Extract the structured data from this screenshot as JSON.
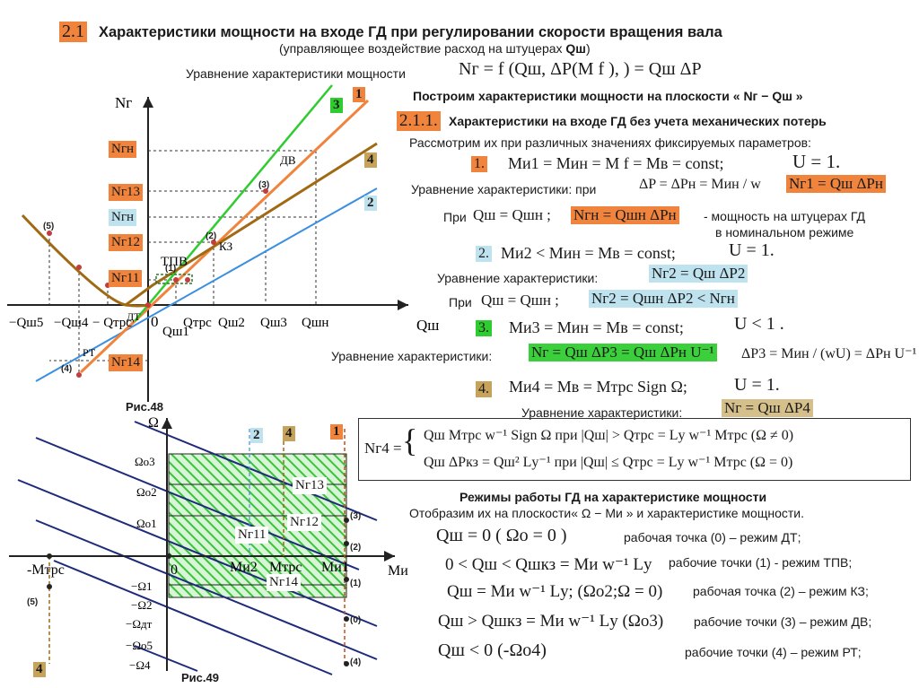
{
  "header": {
    "section_num": "2.1",
    "title": "Характеристики мощности на входе ГД при регулировании скорости вращения вала",
    "subtitle_pre": "(управляющее воздействие расход на штуцерах ",
    "subtitle_q": "Qш",
    "subtitle_post": ")",
    "power_eq_label": "Уравнение характеристики мощности",
    "power_eq": "Nг = f (Qш, ΔP(M f ), ) = Qш ΔP"
  },
  "right": {
    "build_line": "Построим характеристики мощности на плоскости « Nг − Qш »",
    "sub_num": "2.1.1.",
    "sub_title": "Характеристики на входе ГД без учета механических потерь",
    "consider": "Рассмотрим их при различных значениях фиксируемых параметров:",
    "case1_num": "1.",
    "case1_eq": "Mи1 = Mин = M f = Mв = const;",
    "case1_u": "U = 1.",
    "eq1_label": "Уравнение характеристики: при",
    "eq1_cond": "ΔP = ΔPн = Mин / w",
    "eq1_box": "Nг1 = Qш ΔPн",
    "nom_pre": "При",
    "nom_cond": "Qш = Qшн ;",
    "nom_box": "Nгн = Qшн ΔPн",
    "nom_note1": "- мощность на штуцерах ГД",
    "nom_note2": "в  номинальном режиме",
    "case2_num": "2.",
    "case2_eq": "Mи2 < Mин = Mв = const;",
    "case2_u": "U = 1.",
    "eq2_label": "Уравнение характеристики:",
    "eq2_box": "Nг2 = Qш ΔP2",
    "eq2b_pre": "При",
    "eq2b_cond": "Qш = Qшн ;",
    "eq2b_box": "Nг2 = Qшн ΔP2 < Nгн",
    "case3_num": "3.",
    "case3_eq": "Mи3 = Mин = Mв = const;",
    "case3_u": "U < 1 .",
    "eq3_label": "Уравнение характеристики:",
    "eq3_box": "Nг = Qш ΔP3 = Qш ΔPн U⁻¹",
    "eq3_extra": "ΔP3 = Mин / (wU) = ΔPн U⁻¹",
    "case4_num": "4.",
    "case4_eq": "Mи4 = Mв = Mтрс Sign Ω;",
    "case4_u": "U = 1.",
    "eq4_label": "Уравнение характеристики:",
    "eq4_box": "Nг = Qш ΔP4",
    "sys_left": "Nг4 =",
    "sys_r1": "Qш Mтрс w⁻¹ Sign Ω  при |Qш| > Qтрс = Lу w⁻¹ Mтрс  (Ω ≠ 0)",
    "sys_r2": "Qш ΔPкз = Qш² Lу⁻¹   при |Qш| ≤ Qтрс = Lу w⁻¹ Mтрс  (Ω = 0)",
    "modes_title": "Режимы работы ГД на характеристике мощности",
    "modes_sub": "Отобразим их на плоскости« Ω − Mи » и характеристике мощности.",
    "modes": [
      {
        "eq": "Qш = 0  ( Ωo = 0 )",
        "desc": "рабочая точка (0) – режим ДТ;"
      },
      {
        "eq": "0 < Qш < Qшкз = Mи w⁻¹ Lу",
        "desc": "рабочие точки (1) - режим ТПВ;"
      },
      {
        "eq": "Qш = Mи w⁻¹ Lу; (Ωо2;Ω = 0)",
        "desc": "рабочая точка (2) – режим КЗ;"
      },
      {
        "eq": "Qш > Qшкз = Mи w⁻¹ Lу  (Ωо3)",
        "desc": "рабочие точки (3) – режим ДВ;"
      },
      {
        "eq": "Qш < 0  (-Ωо4)",
        "desc": "рабочие точки (4) – режим РТ;"
      }
    ]
  },
  "fig48": {
    "caption": "Рис.48",
    "y_axis": "Nг",
    "x_axis": "Qш",
    "y_labels": [
      "Nгн",
      "Nг13",
      "Nгн",
      "Nг12",
      "Nг11",
      "Nг14"
    ],
    "line_badges": [
      "1",
      "3",
      "4",
      "2"
    ],
    "annotations": [
      "ДВ",
      "КЗ",
      "ТПВ",
      "ДТ",
      "РТ",
      "0"
    ],
    "points": [
      "(5)",
      "(3)",
      "(2)",
      "(1)",
      "(4)"
    ],
    "x_ticks": [
      "−Qш5",
      "−Qш4",
      "− Qтрс",
      "Qш1",
      "Qтрс",
      "Qш2",
      "Qш3",
      "Qшн"
    ]
  },
  "fig49": {
    "caption": "Рис.49",
    "y_axis": "Ω",
    "x_axis": "Mи",
    "y_ticks": [
      "Ωо3",
      "Ωо2",
      "Ωо1",
      "−Ω1",
      "−Ω2",
      "−Ωдт",
      "−Ωо5",
      "−Ω4"
    ],
    "x_ticks": [
      "-Mтрс",
      "0",
      "Mи2",
      "Mтрс",
      "Mи1"
    ],
    "badges": [
      "2",
      "4",
      "1",
      "4"
    ],
    "box_labels": [
      "Nг13",
      "Nг12",
      "Nг11",
      "Nг14"
    ],
    "points": [
      "(3)",
      "(2)",
      "(1)",
      "(0)",
      "(4)",
      "(5)"
    ]
  },
  "colors": {
    "orange": "#f0843c",
    "green": "#2ecc2e",
    "blue": "#3a8fe0",
    "brown": "#a06a14",
    "hatch_green": "#3cc43c",
    "navy": "#1e2a7a"
  }
}
